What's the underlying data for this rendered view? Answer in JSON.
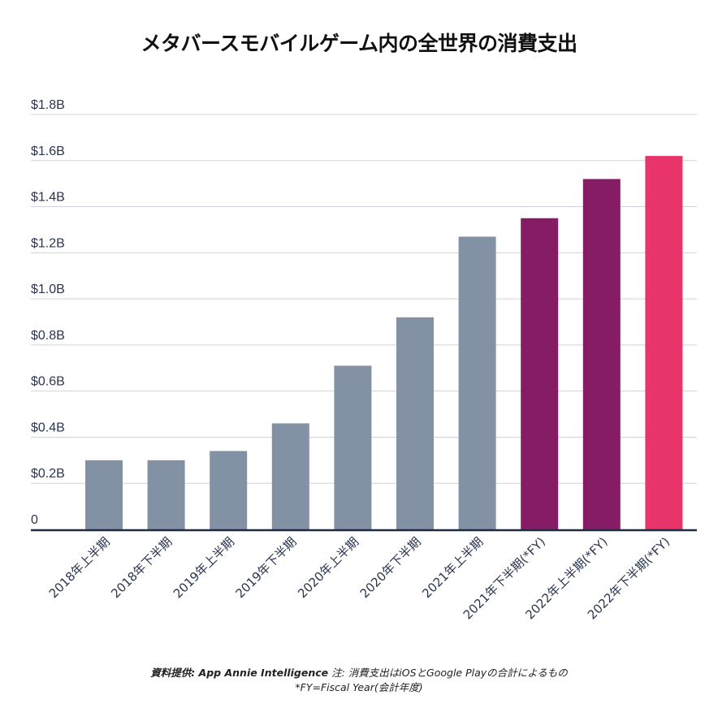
{
  "chart_data": {
    "type": "bar",
    "title": "メタバースモバイルゲーム内の全世界の消費支出",
    "categories": [
      "2018年上半期",
      "2018年下半期",
      "2019年上半期",
      "2019年下半期",
      "2020年上半期",
      "2020年下半期",
      "2021年上半期",
      "2021年下半期(*FY)",
      "2022年上半期(*FY)",
      "2022年下半期(*FY)"
    ],
    "values": [
      0.3,
      0.3,
      0.34,
      0.46,
      0.71,
      0.92,
      1.27,
      1.35,
      1.52,
      1.62
    ],
    "unit": "B USD",
    "bar_colors": [
      "#8391a5",
      "#8391a5",
      "#8391a5",
      "#8391a5",
      "#8391a5",
      "#8391a5",
      "#8391a5",
      "#861c66",
      "#861c66",
      "#e8336b"
    ],
    "ylim": [
      0,
      1.8
    ],
    "yticks": [
      0,
      0.2,
      0.4,
      0.6,
      0.8,
      1.0,
      1.2,
      1.4,
      1.6,
      1.8
    ],
    "ytick_labels": [
      "0",
      "$0.2B",
      "$0.4B",
      "$0.6B",
      "$0.8B",
      "$1.0B",
      "$1.2B",
      "$1.4B",
      "$1.6B",
      "$1.8B"
    ],
    "xlabel": "",
    "ylabel": "",
    "grid": true,
    "legend": "none"
  },
  "footer": {
    "source_label": "資料提供: App Annie Intelligence",
    "note": " 注: 消費支出はiOSとGoogle Playの合計によるもの",
    "fy_note": "*FY=Fiscal Year(会計年度)"
  }
}
